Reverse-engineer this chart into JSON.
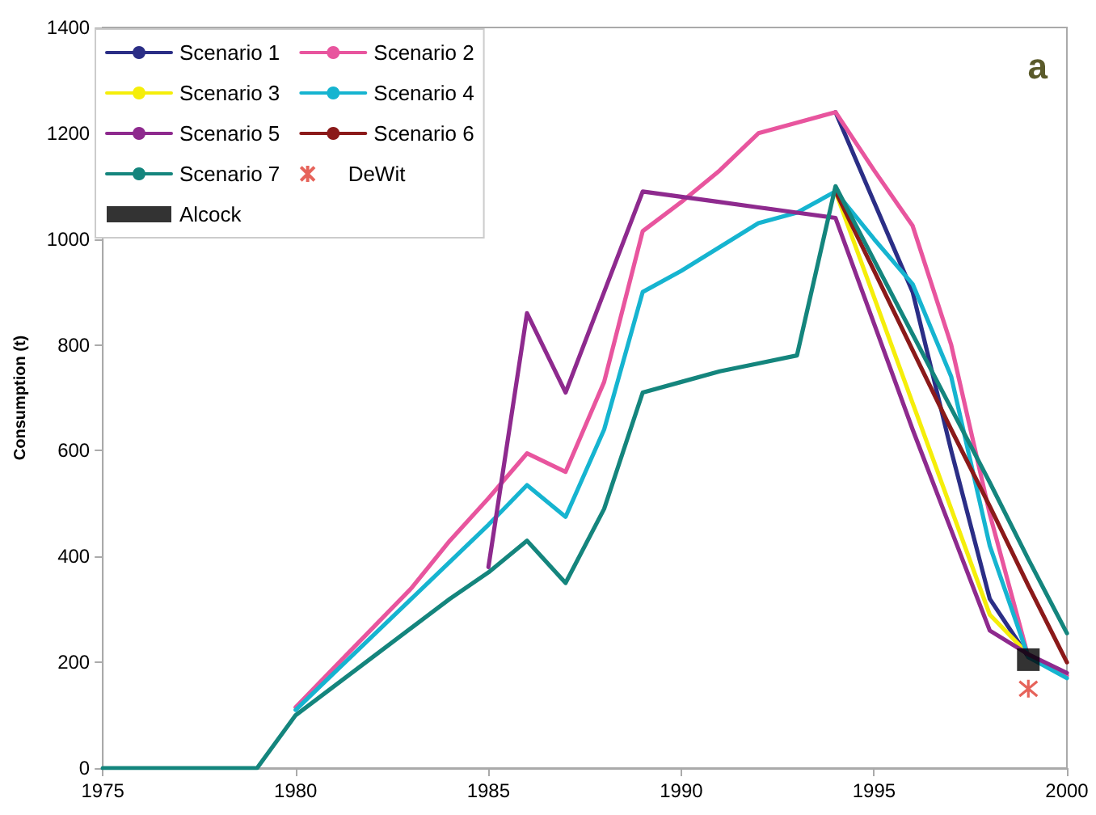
{
  "chart_data": {
    "type": "line",
    "ylabel": "Consumption (t)",
    "annotations": [
      "a"
    ],
    "x": [
      1975,
      1976,
      1977,
      1978,
      1979,
      1980,
      1981,
      1982,
      1983,
      1984,
      1985,
      1986,
      1987,
      1988,
      1989,
      1990,
      1991,
      1992,
      1993,
      1994,
      1995,
      1996,
      1997,
      1998,
      1999,
      2000
    ],
    "series": [
      {
        "name": "Scenario 1",
        "color": "#2b2e86",
        "values": [
          null,
          null,
          null,
          null,
          null,
          null,
          null,
          null,
          null,
          null,
          null,
          null,
          null,
          null,
          null,
          null,
          null,
          null,
          null,
          1240,
          1070,
          900,
          600,
          320,
          210,
          null
        ]
      },
      {
        "name": "Scenario 2",
        "color": "#e8559e",
        "values": [
          null,
          null,
          null,
          null,
          null,
          115,
          190,
          265,
          340,
          430,
          510,
          595,
          560,
          730,
          1015,
          1070,
          1130,
          1200,
          1220,
          1240,
          1130,
          1025,
          800,
          480,
          210,
          175
        ]
      },
      {
        "name": "Scenario 3",
        "color": "#f5ee0a",
        "values": [
          null,
          null,
          null,
          null,
          null,
          null,
          null,
          null,
          null,
          null,
          null,
          null,
          null,
          null,
          null,
          null,
          null,
          null,
          null,
          1090,
          890,
          690,
          490,
          290,
          215,
          null
        ]
      },
      {
        "name": "Scenario 4",
        "color": "#16b4d0",
        "values": [
          null,
          null,
          null,
          null,
          null,
          110,
          180,
          250,
          320,
          390,
          460,
          535,
          475,
          640,
          900,
          940,
          985,
          1030,
          1050,
          1090,
          1000,
          915,
          740,
          420,
          210,
          170
        ]
      },
      {
        "name": "Scenario 5",
        "color": "#8e2a8e",
        "values": [
          null,
          null,
          null,
          null,
          null,
          null,
          null,
          null,
          null,
          null,
          380,
          860,
          710,
          900,
          1090,
          1080,
          1070,
          1060,
          1050,
          1040,
          840,
          640,
          450,
          260,
          215,
          180
        ]
      },
      {
        "name": "Scenario 6",
        "color": "#8b1a1a",
        "values": [
          null,
          null,
          null,
          null,
          null,
          null,
          null,
          null,
          null,
          null,
          null,
          null,
          null,
          null,
          null,
          null,
          null,
          null,
          null,
          1090,
          940,
          790,
          640,
          495,
          345,
          200
        ]
      },
      {
        "name": "Scenario 7",
        "color": "#14857d",
        "values": [
          0,
          0,
          0,
          0,
          0,
          100,
          155,
          210,
          265,
          320,
          370,
          430,
          350,
          490,
          710,
          730,
          750,
          765,
          780,
          1100,
          960,
          820,
          680,
          540,
          395,
          255
        ]
      },
      {
        "name": "DeWit",
        "type": "scatter",
        "marker": "cross",
        "color": "#e03c31",
        "x": [
          1999
        ],
        "values": [
          150
        ]
      },
      {
        "name": "Alcock",
        "type": "scatter",
        "marker": "square",
        "color": "#000000",
        "x": [
          1999
        ],
        "values": [
          205
        ]
      }
    ],
    "xlim": [
      1975,
      2000
    ],
    "xticks": [
      1975,
      1980,
      1985,
      1990,
      1995,
      2000
    ],
    "ylim": [
      0,
      1400
    ],
    "yticks": [
      0,
      200,
      400,
      600,
      800,
      1000,
      1200,
      1400
    ],
    "grid": false,
    "legend": "top left",
    "marker": "none"
  }
}
